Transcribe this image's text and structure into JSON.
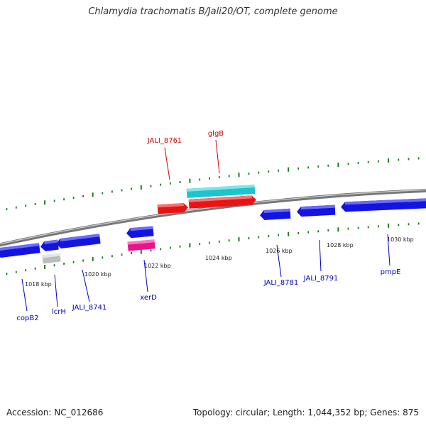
{
  "title": "Chlamydia trachomatis B/Jali20/OT, complete genome",
  "footer": {
    "accession": "Accession: NC_012686",
    "topology": "Topology: circular; Length: 1,044,352 bp; Genes: 875"
  },
  "colors": {
    "backbone": "#808080",
    "tick": "#1f7a1f",
    "forward_gene": "#e01010",
    "forward_product": "#18c0c8",
    "reverse_gene": "#1010e0",
    "reverse_other": "#e0148c",
    "pseudo": "#bdbdbd",
    "forward_label": "#cc0000",
    "reverse_label": "#0000bb"
  },
  "scale_labels": [
    {
      "id": "1018",
      "text": "1018 kbp"
    },
    {
      "id": "1020",
      "text": "1020 kbp"
    },
    {
      "id": "1022",
      "text": "1022 kbp"
    },
    {
      "id": "1024",
      "text": "1024 kbp"
    },
    {
      "id": "1026",
      "text": "1026 kbp"
    },
    {
      "id": "1028",
      "text": "1028 kbp"
    },
    {
      "id": "1030",
      "text": "1030 kbp"
    }
  ],
  "gene_labels": [
    {
      "id": "jali8761",
      "text": "JALI_8761",
      "strand": "forward"
    },
    {
      "id": "glgb",
      "text": "glgB",
      "strand": "forward"
    },
    {
      "id": "copb2",
      "text": "copB2",
      "strand": "reverse"
    },
    {
      "id": "lcrh",
      "text": "lcrH",
      "strand": "reverse"
    },
    {
      "id": "jali8741",
      "text": "JALI_8741",
      "strand": "reverse"
    },
    {
      "id": "xerd",
      "text": "xerD",
      "strand": "reverse"
    },
    {
      "id": "jali8781",
      "text": "JALI_8781",
      "strand": "reverse"
    },
    {
      "id": "jali8791",
      "text": "JALI_8791",
      "strand": "reverse"
    },
    {
      "id": "pmpe",
      "text": "pmpE",
      "strand": "reverse"
    }
  ]
}
